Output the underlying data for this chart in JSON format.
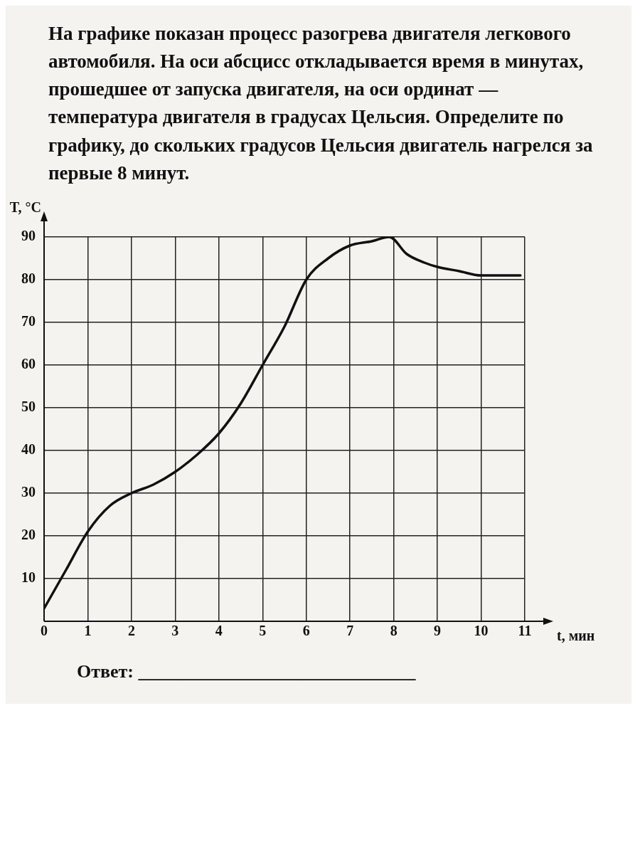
{
  "chart_data": {
    "type": "line",
    "title": "На графике показан процесс разогрева двигателя легкового автомобиля. На оси абсцисс откладывается время в минутах, прошедшее от запуска двигателя, на оси ординат — температура двигателя в градусах Цельсия. Определите по графику, до скольких градусов Цельсия двигатель нагрелся за первые 8 минут.",
    "xlabel": "t, мин",
    "ylabel": "T, °C",
    "x": [
      0,
      0.5,
      1,
      1.5,
      2,
      2.5,
      3,
      3.5,
      4,
      4.5,
      5,
      5.5,
      6,
      6.5,
      7,
      7.5,
      7.9,
      8.3,
      8.7,
      9,
      9.5,
      10,
      10.5,
      10.9
    ],
    "series": [
      {
        "color": "#111111",
        "values": [
          3,
          12,
          21,
          27,
          30,
          32,
          35,
          39,
          44,
          51,
          60,
          69,
          80,
          85,
          88,
          89,
          90,
          86,
          84,
          83,
          82,
          81,
          81,
          81
        ]
      }
    ],
    "xlim": [
      0,
      11
    ],
    "xticks": [
      0,
      1,
      2,
      3,
      4,
      5,
      6,
      7,
      8,
      9,
      10,
      11
    ],
    "ylim": [
      0,
      90
    ],
    "yticks": [
      10,
      20,
      30,
      40,
      50,
      60,
      70,
      80,
      90
    ],
    "grid": true,
    "legend": false,
    "marker": "none",
    "line_style": "solid",
    "annotations": [
      "Ответ: ______________________________"
    ]
  }
}
